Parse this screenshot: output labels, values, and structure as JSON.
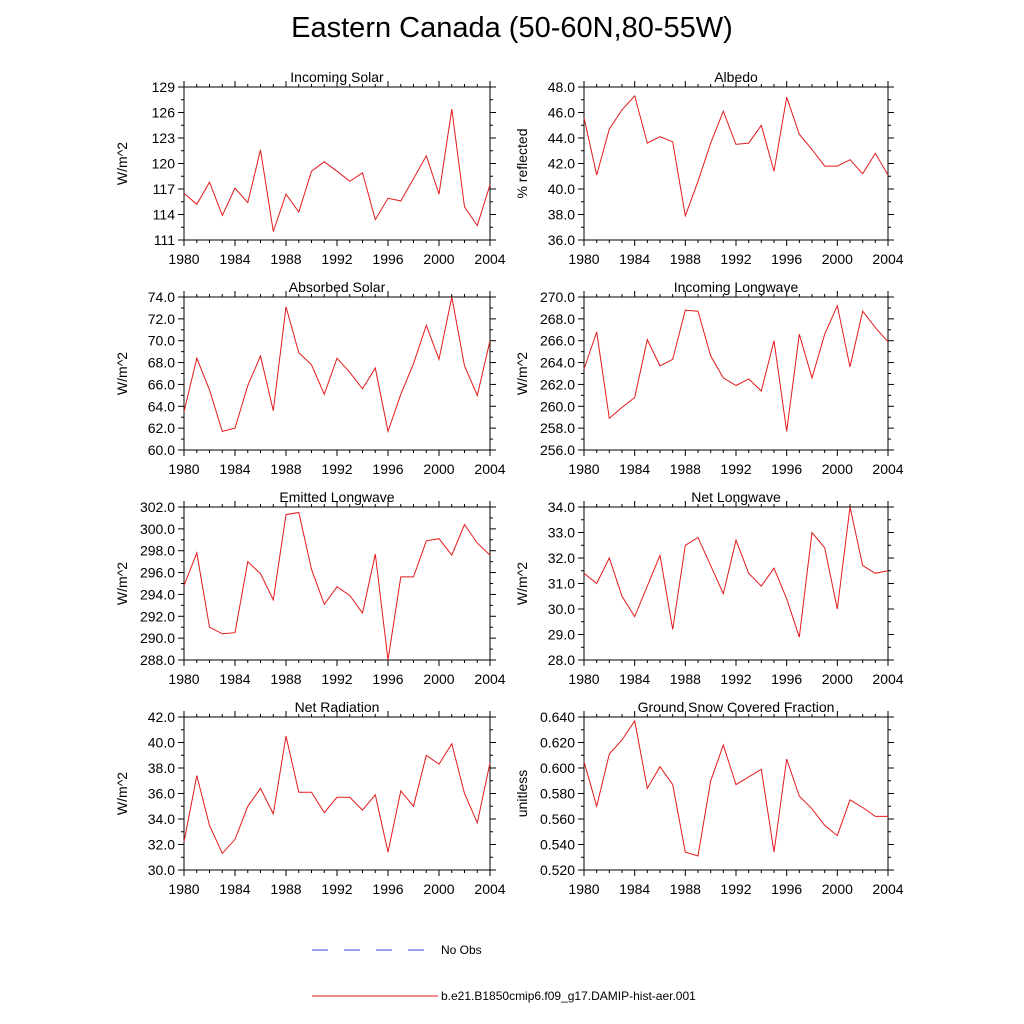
{
  "title": "Eastern Canada (50-60N,80-55W)",
  "legend": [
    {
      "label": "No Obs",
      "color": "#3b3bd0",
      "style": "dashed"
    },
    {
      "label": "b.e21.B1850cmip6.f09_g17.DAMIP-hist-aer.001",
      "color": "#e31a1c",
      "style": "solid"
    }
  ],
  "chart_data": [
    {
      "type": "line",
      "title": "Incoming Solar",
      "ylabel": "W/m^2",
      "xlim": [
        1980,
        2004
      ],
      "ylim": [
        111,
        129
      ],
      "xticks": [
        "1980",
        "1984",
        "1988",
        "1992",
        "1996",
        "2000",
        "2004"
      ],
      "yticks": [
        "111",
        "114",
        "117",
        "120",
        "123",
        "126",
        "129"
      ],
      "series": [
        {
          "color": "#e31a1c",
          "x": [
            1980,
            1981,
            1982,
            1983,
            1984,
            1985,
            1986,
            1987,
            1988,
            1989,
            1990,
            1991,
            1992,
            1993,
            1994,
            1995,
            1996,
            1997,
            1998,
            1999,
            2000,
            2001,
            2002,
            2003,
            2004
          ],
          "values": [
            116.5,
            115.2,
            117.8,
            113.9,
            117.1,
            115.4,
            121.6,
            112.0,
            116.4,
            114.3,
            119.1,
            120.2,
            119.1,
            117.9,
            118.9,
            113.4,
            115.9,
            115.6,
            118.2,
            120.9,
            116.4,
            126.4,
            114.9,
            112.7,
            117.5
          ]
        }
      ]
    },
    {
      "type": "line",
      "title": "Albedo",
      "ylabel": "% reflected",
      "xlim": [
        1980,
        2004
      ],
      "ylim": [
        36,
        48
      ],
      "xticks": [
        "1980",
        "1984",
        "1988",
        "1992",
        "1996",
        "2000",
        "2004"
      ],
      "yticks": [
        "36.0",
        "38.0",
        "40.0",
        "42.0",
        "44.0",
        "46.0",
        "48.0"
      ],
      "series": [
        {
          "color": "#e31a1c",
          "x": [
            1980,
            1981,
            1982,
            1983,
            1984,
            1985,
            1986,
            1987,
            1988,
            1989,
            1990,
            1991,
            1992,
            1993,
            1994,
            1995,
            1996,
            1997,
            1998,
            1999,
            2000,
            2001,
            2002,
            2003,
            2004
          ],
          "values": [
            45.6,
            41.1,
            44.7,
            46.2,
            47.3,
            43.6,
            44.1,
            43.7,
            37.9,
            40.6,
            43.6,
            46.1,
            43.5,
            43.6,
            45.0,
            41.4,
            47.2,
            44.3,
            43.1,
            41.8,
            41.8,
            42.3,
            41.2,
            42.8,
            41.1
          ]
        }
      ]
    },
    {
      "type": "line",
      "title": "Absorbed Solar",
      "ylabel": "W/m^2",
      "xlim": [
        1980,
        2004
      ],
      "ylim": [
        60,
        74
      ],
      "xticks": [
        "1980",
        "1984",
        "1988",
        "1992",
        "1996",
        "2000",
        "2004"
      ],
      "yticks": [
        "60.0",
        "62.0",
        "64.0",
        "66.0",
        "68.0",
        "70.0",
        "72.0",
        "74.0"
      ],
      "series": [
        {
          "color": "#e31a1c",
          "x": [
            1980,
            1981,
            1982,
            1983,
            1984,
            1985,
            1986,
            1987,
            1988,
            1989,
            1990,
            1991,
            1992,
            1993,
            1994,
            1995,
            1996,
            1997,
            1998,
            1999,
            2000,
            2001,
            2002,
            2003,
            2004
          ],
          "values": [
            63.5,
            68.4,
            65.5,
            61.7,
            62.0,
            65.9,
            68.6,
            63.6,
            73.1,
            68.9,
            67.8,
            65.1,
            68.4,
            67.1,
            65.6,
            67.5,
            61.7,
            65.1,
            67.9,
            71.4,
            68.3,
            74.0,
            67.7,
            65.0,
            70.0
          ]
        }
      ]
    },
    {
      "type": "line",
      "title": "Incoming Longwave",
      "ylabel": "W/m^2",
      "xlim": [
        1980,
        2004
      ],
      "ylim": [
        256,
        270
      ],
      "xticks": [
        "1980",
        "1984",
        "1988",
        "1992",
        "1996",
        "2000",
        "2004"
      ],
      "yticks": [
        "256.0",
        "258.0",
        "260.0",
        "262.0",
        "264.0",
        "266.0",
        "268.0",
        "270.0"
      ],
      "series": [
        {
          "color": "#e31a1c",
          "x": [
            1980,
            1981,
            1982,
            1983,
            1984,
            1985,
            1986,
            1987,
            1988,
            1989,
            1990,
            1991,
            1992,
            1993,
            1994,
            1995,
            1996,
            1997,
            1998,
            1999,
            2000,
            2001,
            2002,
            2003,
            2004
          ],
          "values": [
            263.4,
            266.8,
            258.9,
            259.9,
            260.8,
            266.1,
            263.7,
            264.3,
            268.8,
            268.7,
            264.6,
            262.6,
            261.9,
            262.5,
            261.4,
            266.0,
            257.7,
            266.6,
            262.6,
            266.6,
            269.2,
            263.6,
            268.7,
            267.2,
            265.9
          ]
        }
      ]
    },
    {
      "type": "line",
      "title": "Emitted Longwave",
      "ylabel": "W/m^2",
      "xlim": [
        1980,
        2004
      ],
      "ylim": [
        288,
        302
      ],
      "xticks": [
        "1980",
        "1984",
        "1988",
        "1992",
        "1996",
        "2000",
        "2004"
      ],
      "yticks": [
        "288.0",
        "290.0",
        "292.0",
        "294.0",
        "296.0",
        "298.0",
        "300.0",
        "302.0"
      ],
      "series": [
        {
          "color": "#e31a1c",
          "x": [
            1980,
            1981,
            1982,
            1983,
            1984,
            1985,
            1986,
            1987,
            1988,
            1989,
            1990,
            1991,
            1992,
            1993,
            1994,
            1995,
            1996,
            1997,
            1998,
            1999,
            2000,
            2001,
            2002,
            2003,
            2004
          ],
          "values": [
            294.8,
            297.8,
            291.0,
            290.4,
            290.5,
            297.0,
            295.9,
            293.5,
            301.3,
            301.5,
            296.3,
            293.1,
            294.7,
            293.9,
            292.3,
            297.7,
            288.0,
            295.6,
            295.6,
            298.9,
            299.1,
            297.6,
            300.4,
            298.7,
            297.6
          ]
        }
      ]
    },
    {
      "type": "line",
      "title": "Net Longwave",
      "ylabel": "W/m^2",
      "xlim": [
        1980,
        2004
      ],
      "ylim": [
        28,
        34
      ],
      "xticks": [
        "1980",
        "1984",
        "1988",
        "1992",
        "1996",
        "2000",
        "2004"
      ],
      "yticks": [
        "28.0",
        "29.0",
        "30.0",
        "31.0",
        "32.0",
        "33.0",
        "34.0"
      ],
      "series": [
        {
          "color": "#e31a1c",
          "x": [
            1980,
            1981,
            1982,
            1983,
            1984,
            1985,
            1986,
            1987,
            1988,
            1989,
            1990,
            1991,
            1992,
            1993,
            1994,
            1995,
            1996,
            1997,
            1998,
            1999,
            2000,
            2001,
            2002,
            2003,
            2004
          ],
          "values": [
            31.4,
            31.0,
            32.0,
            30.5,
            29.7,
            30.9,
            32.1,
            29.2,
            32.5,
            32.8,
            31.7,
            30.6,
            32.7,
            31.4,
            30.9,
            31.6,
            30.4,
            28.9,
            33.0,
            32.4,
            30.0,
            34.0,
            31.7,
            31.4,
            31.5
          ]
        }
      ]
    },
    {
      "type": "line",
      "title": "Net Radiation",
      "ylabel": "W/m^2",
      "xlim": [
        1980,
        2004
      ],
      "ylim": [
        30,
        42
      ],
      "xticks": [
        "1980",
        "1984",
        "1988",
        "1992",
        "1996",
        "2000",
        "2004"
      ],
      "yticks": [
        "30.0",
        "32.0",
        "34.0",
        "36.0",
        "38.0",
        "40.0",
        "42.0"
      ],
      "series": [
        {
          "color": "#e31a1c",
          "x": [
            1980,
            1981,
            1982,
            1983,
            1984,
            1985,
            1986,
            1987,
            1988,
            1989,
            1990,
            1991,
            1992,
            1993,
            1994,
            1995,
            1996,
            1997,
            1998,
            1999,
            2000,
            2001,
            2002,
            2003,
            2004
          ],
          "values": [
            32.2,
            37.4,
            33.5,
            31.3,
            32.4,
            35.0,
            36.4,
            34.4,
            40.5,
            36.1,
            36.1,
            34.5,
            35.7,
            35.7,
            34.7,
            35.9,
            31.4,
            36.2,
            35.0,
            39.0,
            38.3,
            39.9,
            36.0,
            33.7,
            38.4
          ]
        }
      ]
    },
    {
      "type": "line",
      "title": "Ground Snow Covered Fraction",
      "ylabel": "unitless",
      "xlim": [
        1980,
        2004
      ],
      "ylim": [
        0.52,
        0.64
      ],
      "xticks": [
        "1980",
        "1984",
        "1988",
        "1992",
        "1996",
        "2000",
        "2004"
      ],
      "yticks": [
        "0.520",
        "0.540",
        "0.560",
        "0.580",
        "0.600",
        "0.620",
        "0.640"
      ],
      "series": [
        {
          "color": "#e31a1c",
          "x": [
            1980,
            1981,
            1982,
            1983,
            1984,
            1985,
            1986,
            1987,
            1988,
            1989,
            1990,
            1991,
            1992,
            1993,
            1994,
            1995,
            1996,
            1997,
            1998,
            1999,
            2000,
            2001,
            2002,
            2003,
            2004
          ],
          "values": [
            0.605,
            0.57,
            0.611,
            0.622,
            0.637,
            0.584,
            0.601,
            0.587,
            0.534,
            0.531,
            0.59,
            0.618,
            0.587,
            0.593,
            0.599,
            0.534,
            0.607,
            0.578,
            0.568,
            0.555,
            0.547,
            0.575,
            0.569,
            0.562,
            0.562
          ]
        }
      ]
    }
  ]
}
